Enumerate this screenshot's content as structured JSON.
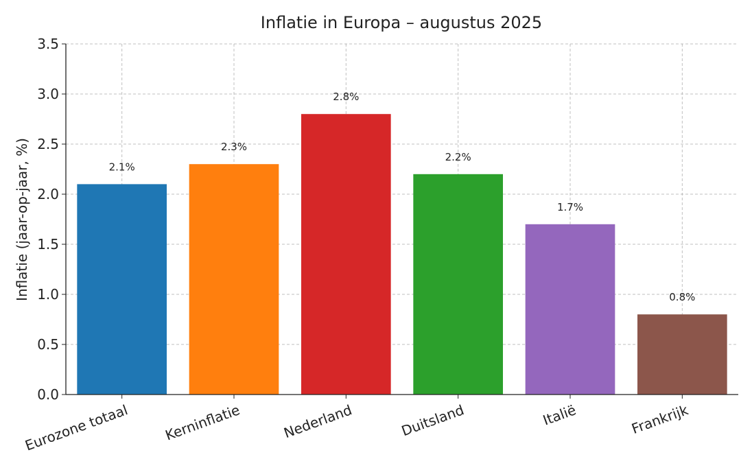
{
  "chart_data": {
    "type": "bar",
    "title": "Inflatie in Europa – augustus 2025",
    "xlabel": "",
    "ylabel": "Inflatie (jaar-op-jaar, %)",
    "categories": [
      "Eurozone totaal",
      "Kerninflatie",
      "Nederland",
      "Duitsland",
      "Italië",
      "Frankrijk"
    ],
    "values": [
      2.1,
      2.3,
      2.8,
      2.2,
      1.7,
      0.8
    ],
    "data_labels": [
      "2.1%",
      "2.3%",
      "2.8%",
      "2.2%",
      "1.7%",
      "0.8%"
    ],
    "colors": [
      "#1f77b4",
      "#ff7f0e",
      "#d62728",
      "#2ca02c",
      "#9467bd",
      "#8c564b"
    ],
    "ylim": [
      0,
      3.5
    ],
    "yticks": [
      "0.0",
      "0.5",
      "1.0",
      "1.5",
      "2.0",
      "2.5",
      "3.0",
      "3.5"
    ],
    "grid": true,
    "legend": "none"
  }
}
